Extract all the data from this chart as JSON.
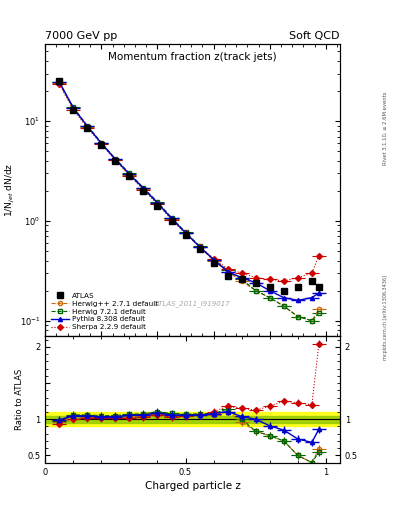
{
  "title_top_left": "7000 GeV pp",
  "title_top_right": "Soft QCD",
  "plot_title": "Momentum fraction z(track jets)",
  "ylabel_main": "1/N$_{jet}$ dN/dz",
  "ylabel_ratio": "Ratio to ATLAS",
  "xlabel": "Charged particle z",
  "watermark": "ATLAS_2011_I919017",
  "right_label": "mcplots.cern.ch [arXiv:1306.3436]",
  "rivet_label": "Rivet 3.1.10, ≥ 2.6M events",
  "atlas_x": [
    0.05,
    0.1,
    0.15,
    0.2,
    0.25,
    0.3,
    0.35,
    0.4,
    0.45,
    0.5,
    0.55,
    0.6,
    0.65,
    0.7,
    0.75,
    0.8,
    0.85,
    0.9,
    0.95,
    0.975
  ],
  "atlas_y": [
    25.0,
    13.0,
    8.5,
    5.8,
    4.0,
    2.8,
    2.0,
    1.4,
    1.0,
    0.72,
    0.52,
    0.38,
    0.28,
    0.26,
    0.24,
    0.22,
    0.2,
    0.22,
    0.25,
    0.22
  ],
  "atlas_yerr": [
    1.2,
    0.6,
    0.4,
    0.28,
    0.18,
    0.13,
    0.1,
    0.07,
    0.05,
    0.035,
    0.025,
    0.019,
    0.014,
    0.013,
    0.012,
    0.011,
    0.01,
    0.011,
    0.012,
    0.011
  ],
  "herwig_y": [
    24.0,
    13.5,
    8.8,
    6.0,
    4.1,
    2.9,
    2.1,
    1.5,
    1.05,
    0.75,
    0.55,
    0.4,
    0.31,
    0.25,
    0.2,
    0.17,
    0.14,
    0.11,
    0.1,
    0.13
  ],
  "herwig7_y": [
    24.5,
    13.8,
    9.0,
    6.1,
    4.2,
    3.0,
    2.15,
    1.55,
    1.08,
    0.77,
    0.56,
    0.41,
    0.32,
    0.26,
    0.2,
    0.17,
    0.14,
    0.11,
    0.1,
    0.12
  ],
  "pythia_y": [
    24.8,
    13.6,
    8.9,
    6.0,
    4.15,
    2.95,
    2.12,
    1.52,
    1.06,
    0.76,
    0.55,
    0.41,
    0.31,
    0.27,
    0.24,
    0.2,
    0.17,
    0.16,
    0.17,
    0.19
  ],
  "sherpa_y": [
    23.5,
    13.0,
    8.6,
    5.9,
    4.05,
    2.85,
    2.05,
    1.48,
    1.03,
    0.75,
    0.55,
    0.42,
    0.33,
    0.3,
    0.27,
    0.26,
    0.25,
    0.27,
    0.3,
    0.45
  ],
  "mc_xerr": 0.025,
  "atlas_band_inner": 0.05,
  "atlas_band_outer": 0.1,
  "color_atlas": "#000000",
  "color_herwig": "#cc6600",
  "color_herwig7": "#006600",
  "color_pythia": "#0000cc",
  "color_sherpa": "#cc0000",
  "color_band_inner": "#99cc00",
  "color_band_outer": "#ffff00",
  "ylim_main": [
    0.07,
    60.0
  ],
  "ylim_ratio": [
    0.39,
    2.15
  ],
  "legend_labels": [
    "ATLAS",
    "Herwig++ 2.7.1 default",
    "Herwig 7.2.1 default",
    "Pythia 8.308 default",
    "Sherpa 2.2.9 default"
  ]
}
